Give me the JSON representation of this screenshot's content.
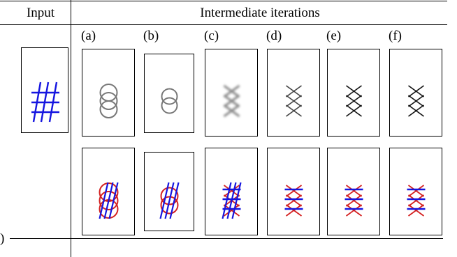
{
  "header": {
    "input": "Input",
    "iterations": "Intermediate iterations"
  },
  "columns": [
    "(a)",
    "(b)",
    "(c)",
    "(d)",
    "(e)",
    "(f)"
  ],
  "margin_text": ")"
}
